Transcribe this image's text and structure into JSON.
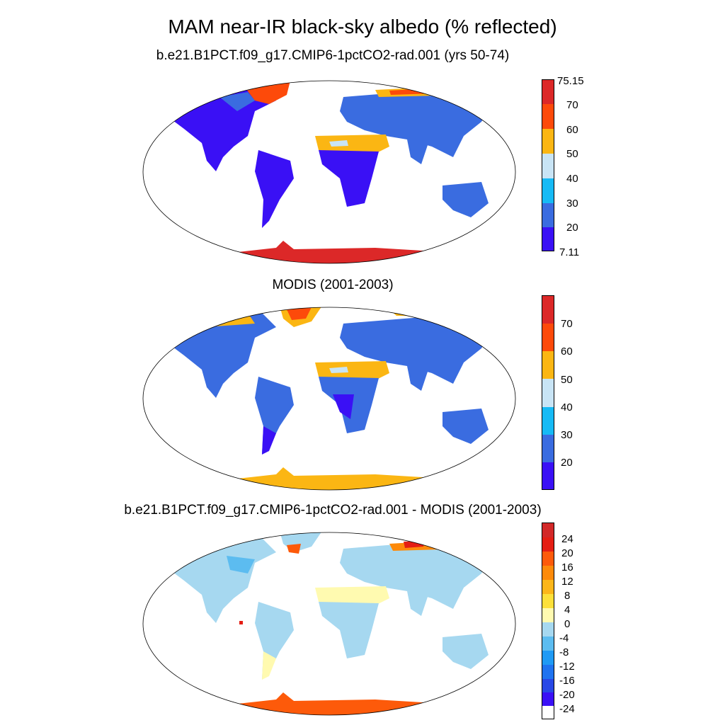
{
  "title": "MAM near-IR black-sky albedo (% reflected)",
  "panels": [
    {
      "title": "b.e21.B1PCT.f09_g17.CMIP6-1pctCO2-rad.001 (yrs 50-74)",
      "colorbar": {
        "colors": [
          "#3a10f5",
          "#3a6ce0",
          "#16baf5",
          "#c8e4f5",
          "#fbb613",
          "#fd4a0a",
          "#dc2828"
        ],
        "labels": [
          "7.11",
          "20",
          "30",
          "40",
          "50",
          "60",
          "70",
          "75.15"
        ]
      }
    },
    {
      "title": "MODIS (2001-2003)",
      "colorbar": {
        "colors": [
          "#3a10f5",
          "#3a6ce0",
          "#16baf5",
          "#c8e4f5",
          "#fbb613",
          "#fd4a0a",
          "#dc2828"
        ],
        "labels": [
          "20",
          "30",
          "40",
          "50",
          "60",
          "70"
        ]
      }
    },
    {
      "title": "b.e21.B1PCT.f09_g17.CMIP6-1pctCO2-rad.001 - MODIS (2001-2003)",
      "colorbar": {
        "colors": [
          "#3a10f5",
          "#2848e6",
          "#1f73f0",
          "#1f9af5",
          "#5cbcf0",
          "#a6d8f0",
          "#fffab0",
          "#fde03a",
          "#fcb61a",
          "#fd8a0a",
          "#fd5a0a",
          "#e41e14",
          "#d22828"
        ],
        "labels": [
          "-24",
          "-20",
          "-16",
          "-12",
          "-8",
          "-4",
          "0",
          "4",
          "8",
          "12",
          "16",
          "20",
          "24"
        ]
      }
    }
  ]
}
